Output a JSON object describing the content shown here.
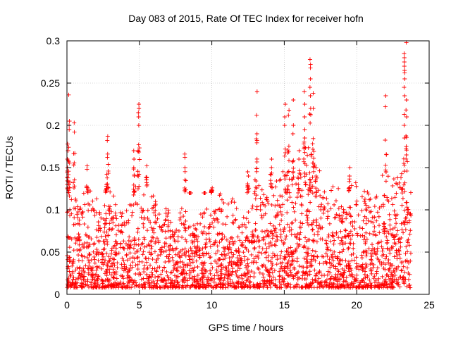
{
  "chart_data": {
    "type": "scatter",
    "title": "Day 083 of 2015, Rate Of TEC Index for receiver hofn",
    "xlabel": "GPS time / hours",
    "ylabel": "ROTI / TECUs",
    "xlim": [
      0,
      25
    ],
    "ylim": [
      0,
      0.3
    ],
    "xticks": [
      0,
      5,
      10,
      15,
      20,
      25
    ],
    "yticks": [
      0,
      0.05,
      0.1,
      0.15,
      0.2,
      0.25,
      0.3
    ],
    "grid": true,
    "marker": "plus",
    "color": "#ff0000",
    "series": [
      {
        "envelope": {
          "x": [
            0,
            0.25,
            0.5,
            1.0,
            1.5,
            2.0,
            2.5,
            3.0,
            3.5,
            4.0,
            4.5,
            5.0,
            5.5,
            6.0,
            6.5,
            7.0,
            7.5,
            8.0,
            8.5,
            9.0,
            9.5,
            10.0,
            10.5,
            11.0,
            11.5,
            12.0,
            12.5,
            13.0,
            13.5,
            14.0,
            14.5,
            15.0,
            15.5,
            16.0,
            16.5,
            17.0,
            17.5,
            18.0,
            18.5,
            19.0,
            19.5,
            20.0,
            20.5,
            21.0,
            21.5,
            22.0,
            22.5,
            23.0,
            23.5,
            23.75
          ],
          "y": [
            0.1,
            0.13,
            0.11,
            0.12,
            0.13,
            0.11,
            0.1,
            0.12,
            0.1,
            0.09,
            0.12,
            0.14,
            0.1,
            0.12,
            0.09,
            0.1,
            0.08,
            0.12,
            0.07,
            0.09,
            0.1,
            0.11,
            0.12,
            0.1,
            0.11,
            0.09,
            0.12,
            0.13,
            0.12,
            0.14,
            0.13,
            0.15,
            0.14,
            0.13,
            0.17,
            0.16,
            0.14,
            0.12,
            0.13,
            0.11,
            0.12,
            0.13,
            0.12,
            0.11,
            0.13,
            0.14,
            0.13,
            0.15,
            0.14,
            0.12
          ]
        },
        "spikes": [
          {
            "x": 0.05,
            "y": [
              0.17,
              0.16,
              0.15
            ]
          },
          {
            "x": 0.1,
            "y": [
              0.236
            ]
          },
          {
            "x": 0.15,
            "y": [
              0.205,
              0.2,
              0.195
            ]
          },
          {
            "x": 0.5,
            "y": [
              0.203,
              0.192
            ]
          },
          {
            "x": 1.4,
            "y": [
              0.152,
              0.148
            ]
          },
          {
            "x": 2.8,
            "y": [
              0.187,
              0.182,
              0.166,
              0.162
            ]
          },
          {
            "x": 2.7,
            "y": [
              0.13,
              0.128
            ]
          },
          {
            "x": 4.6,
            "y": [
              0.17,
              0.16,
              0.15
            ]
          },
          {
            "x": 4.95,
            "y": [
              0.225,
              0.22,
              0.215,
              0.21,
              0.2,
              0.177,
              0.17
            ]
          },
          {
            "x": 5.5,
            "y": [
              0.152
            ]
          },
          {
            "x": 8.15,
            "y": [
              0.166,
              0.162,
              0.15
            ]
          },
          {
            "x": 8.5,
            "y": [
              0.08,
              0.07
            ]
          },
          {
            "x": 9.5,
            "y": [
              0.08
            ]
          },
          {
            "x": 10.0,
            "y": [
              0.126,
              0.124,
              0.122
            ]
          },
          {
            "x": 12.5,
            "y": [
              0.145,
              0.14
            ]
          },
          {
            "x": 13.1,
            "y": [
              0.24,
              0.212,
              0.19,
              0.182
            ]
          },
          {
            "x": 14.1,
            "y": [
              0.16,
              0.15
            ]
          },
          {
            "x": 15.05,
            "y": [
              0.21,
              0.2,
              0.225
            ]
          },
          {
            "x": 15.3,
            "y": [
              0.212,
              0.218
            ]
          },
          {
            "x": 15.6,
            "y": [
              0.23,
              0.2,
              0.19
            ]
          },
          {
            "x": 16.0,
            "y": [
              0.16,
              0.17
            ]
          },
          {
            "x": 16.4,
            "y": [
              0.24,
              0.225,
              0.21,
              0.195,
              0.185
            ]
          },
          {
            "x": 16.8,
            "y": [
              0.278,
              0.272,
              0.268,
              0.255,
              0.245,
              0.235,
              0.22
            ]
          },
          {
            "x": 17.0,
            "y": [
              0.238,
              0.22
            ]
          },
          {
            "x": 17.2,
            "y": [
              0.15,
              0.14
            ]
          },
          {
            "x": 19.5,
            "y": [
              0.15,
              0.14
            ]
          },
          {
            "x": 22.0,
            "y": [
              0.235,
              0.222
            ]
          },
          {
            "x": 23.3,
            "y": [
              0.285,
              0.28,
              0.275,
              0.27,
              0.265,
              0.262,
              0.255,
              0.245,
              0.235,
              0.2,
              0.185
            ]
          },
          {
            "x": 23.45,
            "y": [
              0.298,
              0.23,
              0.21,
              0.175,
              0.165
            ]
          }
        ]
      }
    ]
  }
}
